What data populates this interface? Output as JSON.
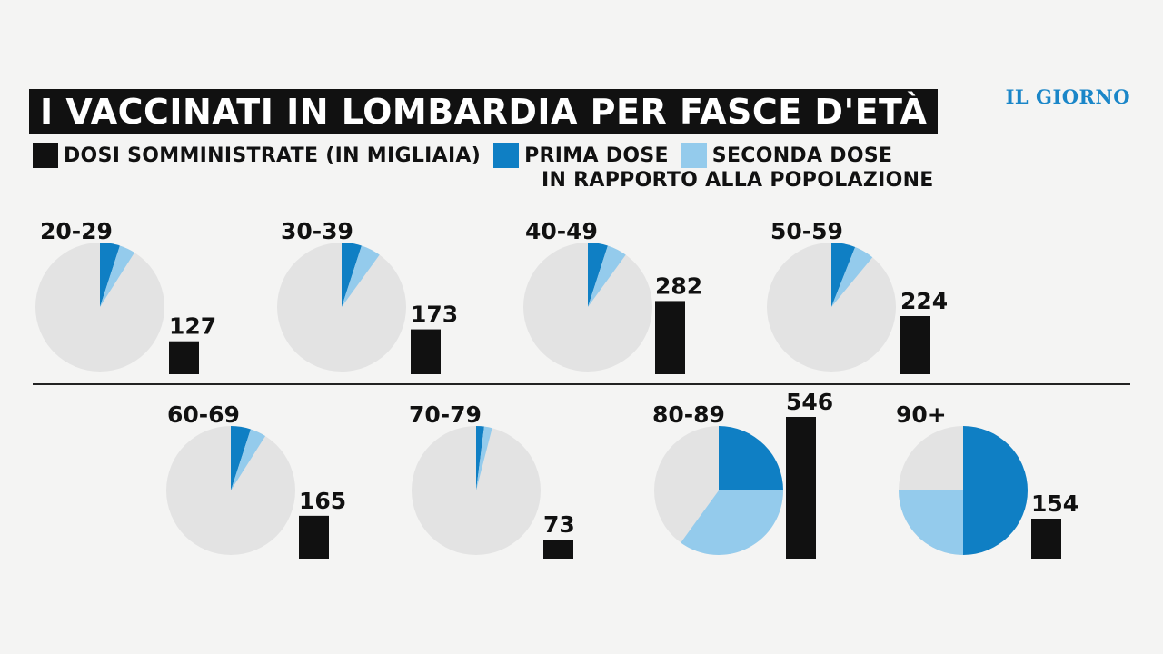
{
  "header": {
    "title": "I VACCINATI IN LOMBARDIA PER FASCE D'ETÀ",
    "brand": "IL GIORNO"
  },
  "legend": {
    "dosi": {
      "label": "DOSI SOMMINISTRATE (IN MIGLIAIA)",
      "color": "#111111"
    },
    "prima": {
      "label": "PRIMA DOSE",
      "color": "#0f7fc4"
    },
    "seconda": {
      "label": "SECONDA DOSE",
      "color": "#94cbec"
    },
    "subtitle": "IN RAPPORTO ALLA POPOLAZIONE"
  },
  "colors": {
    "pie_base": "#e3e3e3",
    "bar": "#111111",
    "rule": "#222222"
  },
  "chart_data": {
    "type": "pie",
    "units": {
      "doses": "migliaia",
      "shares": "fraction of population"
    },
    "groups": [
      {
        "label": "20-29",
        "doses": 127,
        "prima": 0.05,
        "seconda": 0.04
      },
      {
        "label": "30-39",
        "doses": 173,
        "prima": 0.05,
        "seconda": 0.05
      },
      {
        "label": "40-49",
        "doses": 282,
        "prima": 0.05,
        "seconda": 0.05
      },
      {
        "label": "50-59",
        "doses": 224,
        "prima": 0.06,
        "seconda": 0.05
      },
      {
        "label": "60-69",
        "doses": 165,
        "prima": 0.05,
        "seconda": 0.04
      },
      {
        "label": "70-79",
        "doses": 73,
        "prima": 0.02,
        "seconda": 0.02
      },
      {
        "label": "80-89",
        "doses": 546,
        "prima": 0.25,
        "seconda": 0.35
      },
      {
        "label": "90+",
        "doses": 154,
        "prima": 0.5,
        "seconda": 0.25
      }
    ]
  }
}
